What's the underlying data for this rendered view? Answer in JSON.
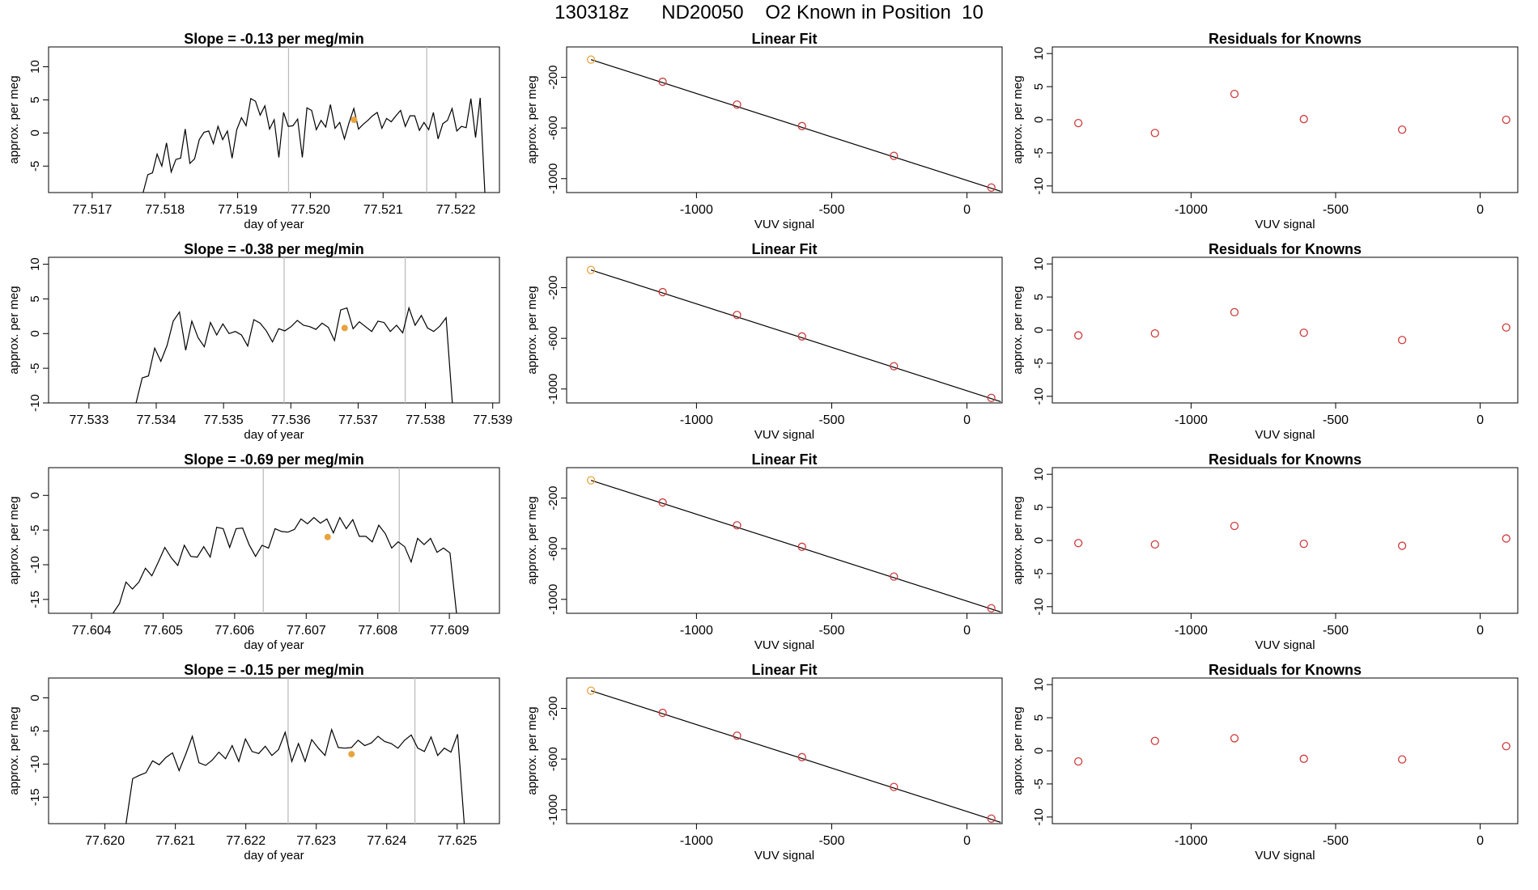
{
  "page_title": "130318z      ND20050    O2 Known in Position  10",
  "colors": {
    "trace": "#000000",
    "vline": "#bdbdbd",
    "marker": "#e8a33d",
    "fit_point": "#cd3b3b",
    "fit_first_point": "#e8a33d",
    "axis": "#000000"
  },
  "fit_x": [
    -1390,
    -1125,
    -850,
    -610,
    -270,
    90
  ],
  "chart_data": [
    {
      "type": "line",
      "panel": "time",
      "row": 1,
      "title": "Slope =  -0.13  per meg/min",
      "xlabel": "day of year",
      "ylabel": "approx. per meg",
      "xlim": [
        77.5164,
        77.5226
      ],
      "ylim": [
        -9,
        13
      ],
      "xticks": [
        "77.517",
        "77.518",
        "77.519",
        "77.520",
        "77.521",
        "77.522"
      ],
      "yticks": [
        -5,
        0,
        5,
        10
      ],
      "vlines": [
        77.5197,
        77.5216
      ],
      "marker": {
        "x": 77.5206,
        "y": 2.0
      },
      "x_start": 77.5177,
      "x_end": 77.5224,
      "trace_seed": 11,
      "y": [
        -9,
        -6.3,
        -6,
        -3.2,
        -5,
        -1.5,
        -5.9,
        -4,
        -3.8,
        0.6,
        -4.6,
        -3.9,
        -1,
        0.1,
        0.3,
        -1.6,
        1,
        -1,
        0.3,
        -3.8,
        0.5,
        2.3,
        1.1,
        5.2,
        4.8,
        2.7,
        4.1,
        0.6,
        2,
        -3.7,
        3.1,
        1,
        1.1,
        2.1,
        -3.7,
        3.8,
        3.4,
        0.5,
        1.9,
        0.9,
        4.3,
        0.7,
        1.6,
        -0.9,
        1.6,
        3.7,
        0.6,
        1.3,
        1.9,
        2.6,
        3.1,
        0.7,
        2.2,
        1.7,
        2.6,
        3.4,
        1,
        2.6,
        2.6,
        0.4,
        1.6,
        0.5,
        3.1,
        -0.9,
        1.4,
        1.9,
        3.7,
        0.3,
        1,
        0.8,
        5.2,
        -0.7,
        5.3,
        -9
      ]
    },
    {
      "type": "line",
      "panel": "fit",
      "row": 1,
      "title": "Linear Fit",
      "xlabel": "VUV signal",
      "ylabel": "approx. per meg",
      "xlim": [
        -1480,
        130
      ],
      "ylim": [
        -1110,
        40
      ],
      "xticks": [
        -1000,
        -500,
        0
      ],
      "yticks": [
        -200,
        -600,
        -1000
      ],
      "x": [
        -1390,
        -1125,
        -850,
        -610,
        -270,
        90
      ],
      "y": [
        -60,
        -235,
        -415,
        -585,
        -820,
        -1070
      ],
      "fit_line": {
        "x": [
          -1390,
          125
        ],
        "y": [
          -60,
          -1100
        ]
      }
    },
    {
      "type": "scatter",
      "panel": "residuals",
      "row": 1,
      "title": "Residuals for Knowns",
      "xlabel": "VUV signal",
      "ylabel": "approx. per meg",
      "xlim": [
        -1480,
        130
      ],
      "ylim": [
        -11,
        11
      ],
      "xticks": [
        -1000,
        -500,
        0
      ],
      "yticks": [
        -10,
        -5,
        0,
        5,
        10
      ],
      "x": [
        -1390,
        -1125,
        -850,
        -610,
        -270,
        90
      ],
      "y": [
        -0.5,
        -2,
        3.9,
        0.1,
        -1.5,
        0
      ]
    },
    {
      "type": "line",
      "panel": "time",
      "row": 2,
      "title": "Slope =  -0.38  per meg/min",
      "xlabel": "day of year",
      "ylabel": "approx. per meg",
      "xlim": [
        77.5324,
        77.5391
      ],
      "ylim": [
        -10,
        11
      ],
      "xticks": [
        "77.533",
        "77.534",
        "77.535",
        "77.536",
        "77.537",
        "77.538",
        "77.539"
      ],
      "yticks": [
        -10,
        -5,
        0,
        5,
        10
      ],
      "vlines": [
        77.5359,
        77.5377
      ],
      "marker": {
        "x": 77.5368,
        "y": 0.8
      },
      "x_start": 77.5337,
      "x_end": 77.5384,
      "trace_seed": 23,
      "y": [
        -10,
        -6.4,
        -6.1,
        -2.1,
        -4,
        -1.7,
        1.8,
        3.1,
        -2.4,
        1.8,
        -0.6,
        -1.9,
        1.6,
        -0.2,
        1.4,
        0,
        0.3,
        -0.2,
        -1.8,
        2,
        1.5,
        0.4,
        -1.2,
        0.7,
        0.4,
        1,
        1.9,
        1.2,
        1,
        0.6,
        1.5,
        0.9,
        -1,
        3.4,
        3.7,
        0.7,
        1.7,
        1,
        0.3,
        1.8,
        1.6,
        0.3,
        1.2,
        0.1,
        3.7,
        1.2,
        2.6,
        0.8,
        0.3,
        1.1,
        2.3,
        -10
      ]
    },
    {
      "type": "line",
      "panel": "fit",
      "row": 2,
      "title": "Linear Fit",
      "xlabel": "VUV signal",
      "ylabel": "approx. per meg",
      "xlim": [
        -1480,
        130
      ],
      "ylim": [
        -1110,
        40
      ],
      "xticks": [
        -1000,
        -500,
        0
      ],
      "yticks": [
        -200,
        -600,
        -1000
      ],
      "x": [
        -1390,
        -1125,
        -850,
        -610,
        -270,
        90
      ],
      "y": [
        -60,
        -235,
        -415,
        -585,
        -820,
        -1070
      ],
      "fit_line": {
        "x": [
          -1390,
          125
        ],
        "y": [
          -60,
          -1100
        ]
      }
    },
    {
      "type": "scatter",
      "panel": "residuals",
      "row": 2,
      "title": "Residuals for Knowns",
      "xlabel": "VUV signal",
      "ylabel": "approx. per meg",
      "xlim": [
        -1480,
        130
      ],
      "ylim": [
        -11,
        11
      ],
      "xticks": [
        -1000,
        -500,
        0
      ],
      "yticks": [
        -10,
        -5,
        0,
        5,
        10
      ],
      "x": [
        -1390,
        -1125,
        -850,
        -610,
        -270,
        90
      ],
      "y": [
        -0.8,
        -0.5,
        2.7,
        -0.4,
        -1.5,
        0.4
      ]
    },
    {
      "type": "line",
      "panel": "time",
      "row": 3,
      "title": "Slope =  -0.69  per meg/min",
      "xlabel": "day of year",
      "ylabel": "approx. per meg",
      "xlim": [
        77.6034,
        77.6097
      ],
      "ylim": [
        -17,
        4
      ],
      "xticks": [
        "77.604",
        "77.605",
        "77.606",
        "77.607",
        "77.608",
        "77.609"
      ],
      "yticks": [
        -15,
        -10,
        -5,
        0
      ],
      "vlines": [
        77.6064,
        77.6083
      ],
      "marker": {
        "x": 77.6073,
        "y": -6.0
      },
      "x_start": 77.6043,
      "x_end": 77.6091,
      "trace_seed": 37,
      "y": [
        -17,
        -15.6,
        -12.5,
        -13.5,
        -12.5,
        -10.5,
        -11.6,
        -9.6,
        -7.5,
        -9,
        -10.1,
        -7.2,
        -8.8,
        -8.9,
        -7.4,
        -8.9,
        -4.6,
        -4.8,
        -7.5,
        -4.8,
        -4.7,
        -7.1,
        -8.8,
        -7.2,
        -7.6,
        -4.8,
        -5.2,
        -5.3,
        -4.9,
        -3.4,
        -4.1,
        -3.2,
        -4,
        -3.4,
        -5.4,
        -3.2,
        -4.8,
        -3.5,
        -5.9,
        -5.9,
        -6.7,
        -4.3,
        -5.5,
        -7.6,
        -6.7,
        -7.4,
        -9.6,
        -6.2,
        -7.1,
        -6.2,
        -8.2,
        -7.6,
        -8.3,
        -17
      ]
    },
    {
      "type": "line",
      "panel": "fit",
      "row": 3,
      "title": "Linear Fit",
      "xlabel": "VUV signal",
      "ylabel": "approx. per meg",
      "xlim": [
        -1480,
        130
      ],
      "ylim": [
        -1110,
        40
      ],
      "xticks": [
        -1000,
        -500,
        0
      ],
      "yticks": [
        -200,
        -600,
        -1000
      ],
      "x": [
        -1390,
        -1125,
        -850,
        -610,
        -270,
        90
      ],
      "y": [
        -60,
        -235,
        -415,
        -585,
        -820,
        -1070
      ],
      "fit_line": {
        "x": [
          -1390,
          125
        ],
        "y": [
          -60,
          -1100
        ]
      }
    },
    {
      "type": "scatter",
      "panel": "residuals",
      "row": 3,
      "title": "Residuals for Knowns",
      "xlabel": "VUV signal",
      "ylabel": "approx. per meg",
      "xlim": [
        -1480,
        130
      ],
      "ylim": [
        -11,
        11
      ],
      "xticks": [
        -1000,
        -500,
        0
      ],
      "yticks": [
        -10,
        -5,
        0,
        5,
        10
      ],
      "x": [
        -1390,
        -1125,
        -850,
        -610,
        -270,
        90
      ],
      "y": [
        -0.4,
        -0.6,
        2.2,
        -0.5,
        -0.8,
        0.3
      ]
    },
    {
      "type": "line",
      "panel": "time",
      "row": 4,
      "title": "Slope =  -0.15  per meg/min",
      "xlabel": "day of year",
      "ylabel": "approx. per meg",
      "xlim": [
        77.6192,
        77.6256
      ],
      "ylim": [
        -19,
        3
      ],
      "xticks": [
        "77.620",
        "77.621",
        "77.622",
        "77.623",
        "77.624",
        "77.625"
      ],
      "yticks": [
        -15,
        -10,
        -5,
        0
      ],
      "vlines": [
        77.6226,
        77.6244
      ],
      "marker": {
        "x": 77.6235,
        "y": -8.5
      },
      "x_start": 77.6203,
      "x_end": 77.6251,
      "trace_seed": 53,
      "y": [
        -19,
        -12.2,
        -11.7,
        -11.3,
        -9.5,
        -10.1,
        -9,
        -8.3,
        -11,
        -8.5,
        -5.8,
        -9.8,
        -10.2,
        -9.4,
        -8.2,
        -9.2,
        -7.2,
        -9.6,
        -6.2,
        -8.1,
        -8.4,
        -7.3,
        -8.7,
        -7.8,
        -5.2,
        -9.6,
        -6.9,
        -9.6,
        -6.3,
        -7.6,
        -8.7,
        -4.8,
        -7.5,
        -7.6,
        -7.5,
        -6.4,
        -7.2,
        -6.8,
        -5.8,
        -6.6,
        -6.9,
        -7.6,
        -6.4,
        -5.6,
        -7.6,
        -8.1,
        -5.9,
        -8.7,
        -7.6,
        -8.2,
        -5.5,
        -19
      ]
    },
    {
      "type": "line",
      "panel": "fit",
      "row": 4,
      "title": "Linear Fit",
      "xlabel": "VUV signal",
      "ylabel": "approx. per meg",
      "xlim": [
        -1480,
        130
      ],
      "ylim": [
        -1110,
        40
      ],
      "xticks": [
        -1000,
        -500,
        0
      ],
      "yticks": [
        -200,
        -600,
        -1000
      ],
      "x": [
        -1390,
        -1125,
        -850,
        -610,
        -270,
        90
      ],
      "y": [
        -60,
        -235,
        -415,
        -585,
        -820,
        -1070
      ],
      "fit_line": {
        "x": [
          -1390,
          125
        ],
        "y": [
          -60,
          -1100
        ]
      }
    },
    {
      "type": "scatter",
      "panel": "residuals",
      "row": 4,
      "title": "Residuals for Knowns",
      "xlabel": "VUV signal",
      "ylabel": "approx. per meg",
      "xlim": [
        -1480,
        130
      ],
      "ylim": [
        -11,
        11
      ],
      "xticks": [
        -1000,
        -500,
        0
      ],
      "yticks": [
        -10,
        -5,
        0,
        5,
        10
      ],
      "x": [
        -1390,
        -1125,
        -850,
        -610,
        -270,
        90
      ],
      "y": [
        -1.6,
        1.5,
        1.9,
        -1.2,
        -1.3,
        0.7
      ]
    }
  ]
}
